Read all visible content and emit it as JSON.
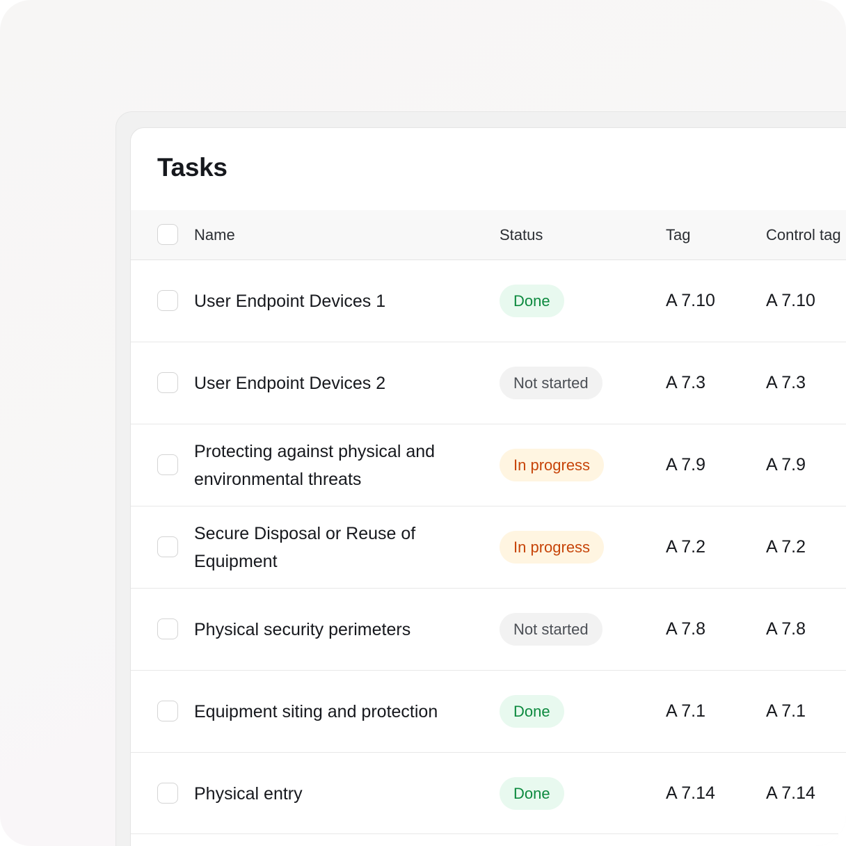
{
  "title": "Tasks",
  "columns": {
    "name": "Name",
    "status": "Status",
    "tag": "Tag",
    "control_tag": "Control tag"
  },
  "colors": {
    "done_bg": "#e8f9ef",
    "done_text": "#0d8a3f",
    "not_started_bg": "#f2f2f2",
    "not_started_text": "#4b4f55",
    "in_progress_bg": "#fff5e1",
    "in_progress_text": "#c7450a"
  },
  "rows": [
    {
      "name": "User Endpoint Devices 1",
      "status": "Done",
      "status_kind": "done",
      "tag": "A 7.10",
      "control_tag": "A 7.10"
    },
    {
      "name": "User Endpoint Devices 2",
      "status": "Not started",
      "status_kind": "not-started",
      "tag": "A 7.3",
      "control_tag": "A 7.3"
    },
    {
      "name": "Protecting against physical and environmental threats",
      "status": "In progress",
      "status_kind": "in-progress",
      "tag": "A 7.9",
      "control_tag": "A 7.9"
    },
    {
      "name": "Secure Disposal or Reuse of Equipment",
      "status": "In progress",
      "status_kind": "in-progress",
      "tag": "A 7.2",
      "control_tag": "A 7.2"
    },
    {
      "name": "Physical security perimeters",
      "status": "Not started",
      "status_kind": "not-started",
      "tag": "A 7.8",
      "control_tag": "A 7.8"
    },
    {
      "name": "Equipment siting and protection",
      "status": "Done",
      "status_kind": "done",
      "tag": "A 7.1",
      "control_tag": "A 7.1"
    },
    {
      "name": "Physical entry",
      "status": "Done",
      "status_kind": "done",
      "tag": "A 7.14",
      "control_tag": "A 7.14"
    }
  ]
}
